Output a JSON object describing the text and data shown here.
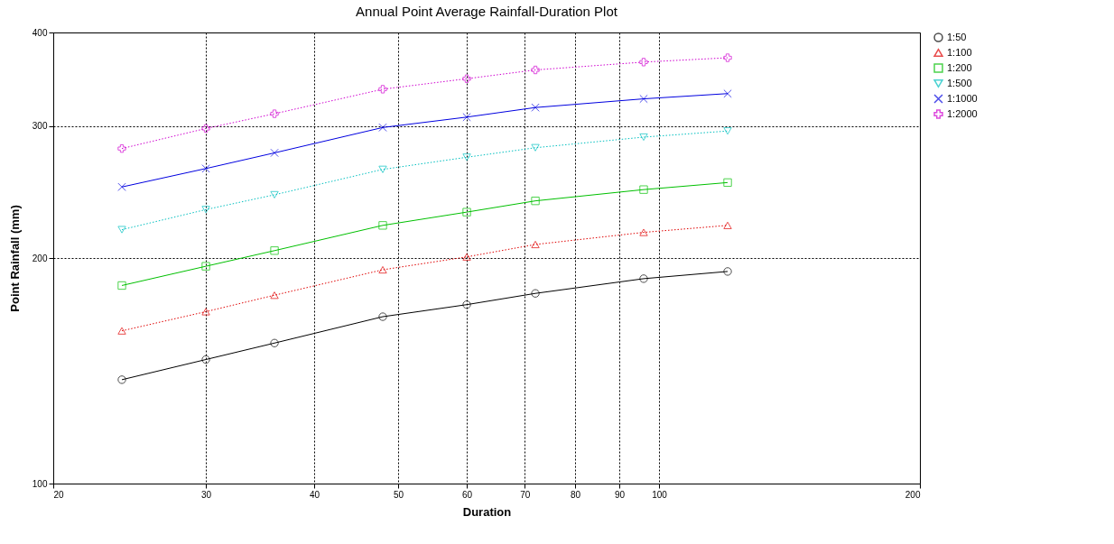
{
  "chart_data": {
    "type": "line",
    "title": "Annual Point Average Rainfall-Duration Plot",
    "xlabel": "Duration",
    "ylabel": "Point Rainfall (mm)",
    "log": "xy",
    "grid": true,
    "legend": "top right",
    "x": [
      24,
      30,
      36,
      48,
      60,
      72,
      96,
      120
    ],
    "xlim": [
      20,
      200
    ],
    "xticks": [
      20,
      30,
      40,
      50,
      60,
      70,
      80,
      90,
      100,
      200
    ],
    "ylim": [
      100,
      400
    ],
    "yticks": [
      100,
      200,
      300,
      400
    ],
    "series": [
      {
        "name": "1:50",
        "color": "#000000",
        "marker": "circle",
        "line_style": "solid",
        "values": [
          137.6,
          146.4,
          154,
          167,
          173.3,
          179.4,
          187.7,
          191.9
        ]
      },
      {
        "name": "1:100",
        "color": "#e00000",
        "marker": "triangle",
        "line_style": "dotted",
        "values": [
          159.9,
          169.6,
          178.4,
          192.9,
          200.7,
          208.5,
          216.4,
          221.1
        ]
      },
      {
        "name": "1:200",
        "color": "#00c000",
        "marker": "square",
        "line_style": "solid",
        "values": [
          183.8,
          195,
          204.6,
          221.1,
          230.3,
          238.4,
          246.8,
          252.2
        ]
      },
      {
        "name": "1:500",
        "color": "#00c0c0",
        "marker": "triangle-down",
        "line_style": "dotted",
        "values": [
          218.2,
          232.1,
          242.9,
          262.6,
          272.6,
          280.7,
          290,
          295.5
        ]
      },
      {
        "name": "1:1000",
        "color": "#0000e0",
        "marker": "cross",
        "line_style": "solid",
        "values": [
          248.8,
          263.3,
          276.3,
          298.7,
          308.4,
          317.6,
          326.2,
          331.5
        ]
      },
      {
        "name": "1:2000",
        "color": "#d000d0",
        "marker": "plus",
        "line_style": "dotted",
        "values": [
          280,
          297.8,
          311.6,
          336,
          347,
          356.5,
          365.2,
          370.1
        ]
      }
    ]
  }
}
